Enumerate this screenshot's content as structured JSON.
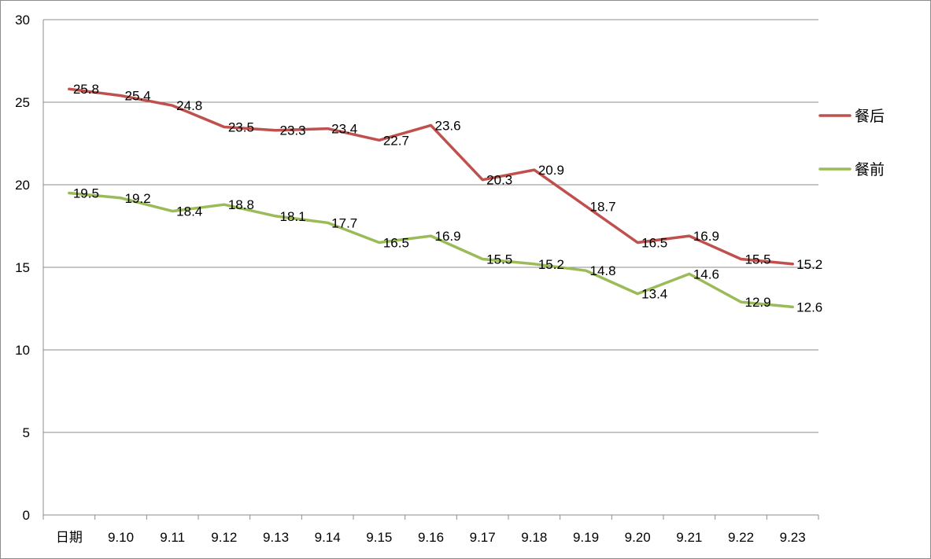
{
  "chart_data": {
    "type": "line",
    "categories": [
      "日期",
      "9.10",
      "9.11",
      "9.12",
      "9.13",
      "9.14",
      "9.15",
      "9.16",
      "9.17",
      "9.18",
      "9.19",
      "9.20",
      "9.21",
      "9.22",
      "9.23"
    ],
    "series": [
      {
        "name": "餐后",
        "color": "#c0504d",
        "values": [
          25.8,
          25.4,
          24.8,
          23.5,
          23.3,
          23.4,
          22.7,
          23.6,
          20.3,
          20.9,
          18.7,
          16.5,
          16.9,
          15.5,
          15.2
        ]
      },
      {
        "name": "餐前",
        "color": "#9bbb59",
        "values": [
          19.5,
          19.2,
          18.4,
          18.8,
          18.1,
          17.7,
          16.5,
          16.9,
          15.5,
          15.2,
          14.8,
          13.4,
          14.6,
          12.9,
          12.6
        ]
      }
    ],
    "ylim": [
      0,
      30
    ],
    "yticks": [
      "0",
      "5",
      "10",
      "15",
      "20",
      "25",
      "30"
    ],
    "grid": true,
    "legend_position": "right"
  }
}
